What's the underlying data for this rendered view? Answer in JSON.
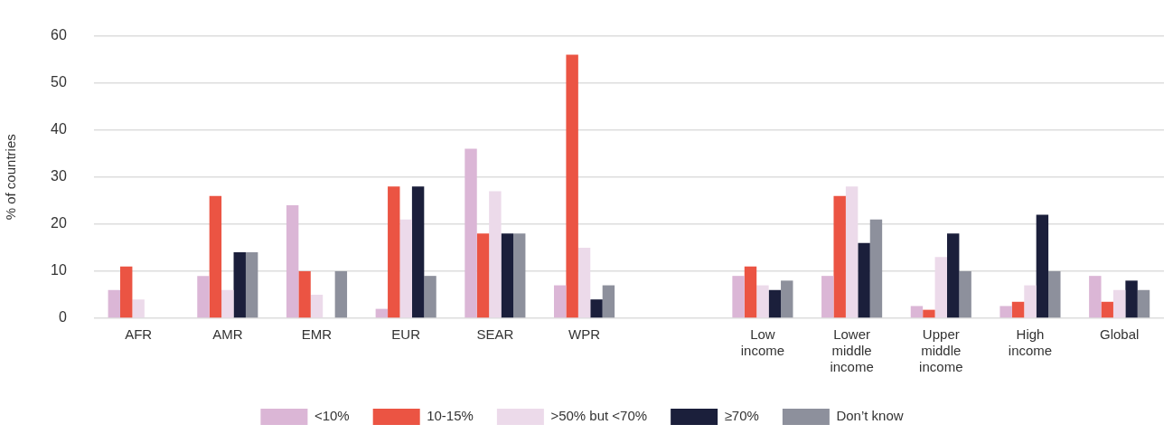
{
  "chart_data": {
    "type": "bar",
    "ylabel": "% of countries",
    "categories": [
      "AFR",
      "AMR",
      "EMR",
      "EUR",
      "SEAR",
      "WPR",
      null,
      "Low income",
      "Lower middle income",
      "Upper middle income",
      "High income",
      "Global"
    ],
    "series": [
      {
        "name": "<10%",
        "color": "#dbb6d6",
        "values": [
          6,
          9,
          24,
          2,
          36,
          7,
          null,
          9,
          9,
          2.6,
          2.6,
          9
        ]
      },
      {
        "name": "10-15%",
        "color": "#eb5443",
        "values": [
          11,
          26,
          10,
          28,
          18,
          56,
          null,
          11,
          26,
          1.8,
          3.5,
          3.5
        ]
      },
      {
        "name": ">50% but <70%",
        "color": "#ecdaea",
        "values": [
          4,
          6,
          5,
          21,
          27,
          15,
          null,
          7,
          28,
          13,
          7,
          6
        ]
      },
      {
        "name": "≥70%",
        "color": "#1b1f3b",
        "values": [
          null,
          14,
          null,
          28,
          18,
          4,
          null,
          6,
          16,
          18,
          22,
          8
        ]
      },
      {
        "name": "Don’t know",
        "color": "#8d909c",
        "values": [
          null,
          14,
          10,
          9,
          18,
          7,
          null,
          8,
          21,
          10,
          10,
          6
        ]
      }
    ],
    "ylim": [
      0,
      60
    ],
    "yticks": [
      0,
      10,
      20,
      30,
      40,
      50,
      60
    ],
    "grid": "y",
    "legend": "bottom"
  }
}
